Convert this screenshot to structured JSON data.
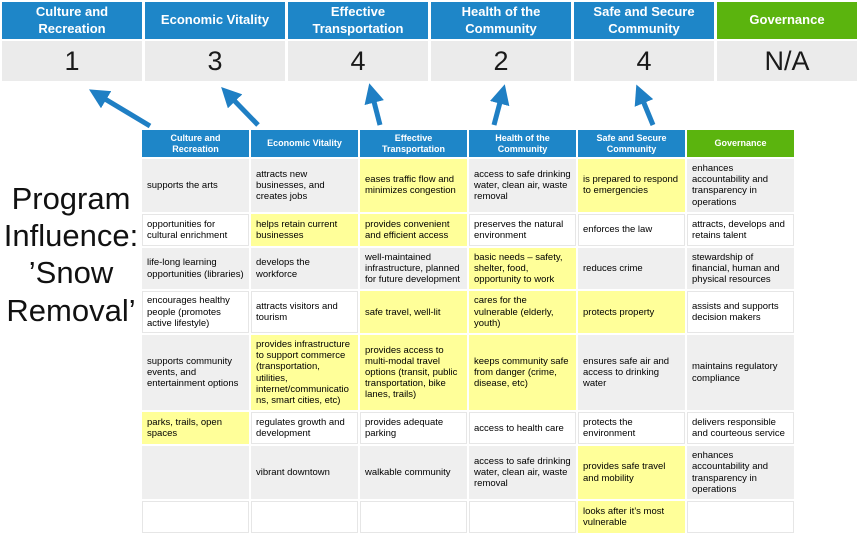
{
  "title": {
    "lines": [
      "Program",
      "Influence:",
      "’Snow",
      "Removal’"
    ]
  },
  "colors": {
    "accent_blue": "#1E86C8",
    "accent_green": "#5BB40E",
    "highlight_yellow": "#FFFF99",
    "stripe_gray": "#EFEFEF",
    "score_bg": "#EBEBEB",
    "arrow_blue": "#1F7FC4"
  },
  "scorecard": {
    "columns": [
      {
        "label": "Culture and Recreation",
        "score": "1",
        "theme": "blue"
      },
      {
        "label": "Economic Vitality",
        "score": "3",
        "theme": "blue"
      },
      {
        "label": "Effective Transportation",
        "score": "4",
        "theme": "blue"
      },
      {
        "label": "Health of the Community",
        "score": "2",
        "theme": "blue"
      },
      {
        "label": "Safe and Secure Community",
        "score": "4",
        "theme": "blue"
      },
      {
        "label": "Governance",
        "score": "N/A",
        "theme": "green"
      }
    ]
  },
  "matrix": {
    "headers": [
      {
        "label": "Culture and Recreation",
        "theme": "blue"
      },
      {
        "label": "Economic Vitality",
        "theme": "blue"
      },
      {
        "label": "Effective Transportation",
        "theme": "blue"
      },
      {
        "label": "Health of the Community",
        "theme": "blue"
      },
      {
        "label": "Safe and Secure Community",
        "theme": "blue"
      },
      {
        "label": "Governance",
        "theme": "green"
      }
    ],
    "rows": [
      [
        {
          "text": "supports the arts",
          "highlight": false
        },
        {
          "text": "attracts new businesses, and creates jobs",
          "highlight": false
        },
        {
          "text": "eases traffic flow and minimizes congestion",
          "highlight": true
        },
        {
          "text": "access to safe drinking water, clean air, waste removal",
          "highlight": false
        },
        {
          "text": "is prepared to respond to emergencies",
          "highlight": true
        },
        {
          "text": "enhances accountability and transparency in operations",
          "highlight": false
        }
      ],
      [
        {
          "text": "opportunities for cultural enrichment",
          "highlight": false
        },
        {
          "text": "helps retain current businesses",
          "highlight": true
        },
        {
          "text": "provides convenient and efficient access",
          "highlight": true
        },
        {
          "text": "preserves the natural environment",
          "highlight": false
        },
        {
          "text": "enforces the law",
          "highlight": false
        },
        {
          "text": "attracts, develops and retains talent",
          "highlight": false
        }
      ],
      [
        {
          "text": "life-long learning opportunities (libraries)",
          "highlight": false
        },
        {
          "text": "develops the workforce",
          "highlight": false
        },
        {
          "text": "well-maintained infrastructure, planned for future development",
          "highlight": false
        },
        {
          "text": "basic needs – safety, shelter, food, opportunity to work",
          "highlight": true
        },
        {
          "text": "reduces crime",
          "highlight": false
        },
        {
          "text": "stewardship of financial, human and physical resources",
          "highlight": false
        }
      ],
      [
        {
          "text": "encourages healthy people (promotes active lifestyle)",
          "highlight": false
        },
        {
          "text": "attracts visitors and tourism",
          "highlight": false
        },
        {
          "text": "safe travel, well-lit",
          "highlight": true
        },
        {
          "text": "cares for the vulnerable (elderly, youth)",
          "highlight": true
        },
        {
          "text": "protects property",
          "highlight": true
        },
        {
          "text": "assists and supports decision makers",
          "highlight": false
        }
      ],
      [
        {
          "text": "supports community events, and entertainment options",
          "highlight": false
        },
        {
          "text": "provides infrastructure to support commerce (transportation, utilities, internet/communications, smart cities, etc)",
          "highlight": true
        },
        {
          "text": "provides access to multi-modal travel options (transit, public transportation, bike lanes, trails)",
          "highlight": true
        },
        {
          "text": "keeps community safe from danger (crime, disease, etc)",
          "highlight": true
        },
        {
          "text": "ensures safe air and access to drinking water",
          "highlight": false
        },
        {
          "text": "maintains regulatory compliance",
          "highlight": false
        }
      ],
      [
        {
          "text": "parks, trails, open spaces",
          "highlight": true
        },
        {
          "text": "regulates growth and development",
          "highlight": false
        },
        {
          "text": "provides adequate parking",
          "highlight": false
        },
        {
          "text": "access to health care",
          "highlight": false
        },
        {
          "text": "protects the environment",
          "highlight": false
        },
        {
          "text": "delivers responsible and courteous service",
          "highlight": false
        }
      ],
      [
        {
          "text": "",
          "highlight": false
        },
        {
          "text": "vibrant downtown",
          "highlight": false
        },
        {
          "text": "walkable community",
          "highlight": false
        },
        {
          "text": "access to safe drinking water, clean air, waste removal",
          "highlight": false
        },
        {
          "text": "provides safe travel and mobility",
          "highlight": true
        },
        {
          "text": "enhances accountability and transparency in operations",
          "highlight": false
        }
      ],
      [
        {
          "text": "",
          "highlight": false
        },
        {
          "text": "",
          "highlight": false
        },
        {
          "text": "",
          "highlight": false
        },
        {
          "text": "",
          "highlight": false
        },
        {
          "text": "looks after it’s most vulnerable",
          "highlight": true
        },
        {
          "text": "",
          "highlight": false
        }
      ]
    ]
  }
}
